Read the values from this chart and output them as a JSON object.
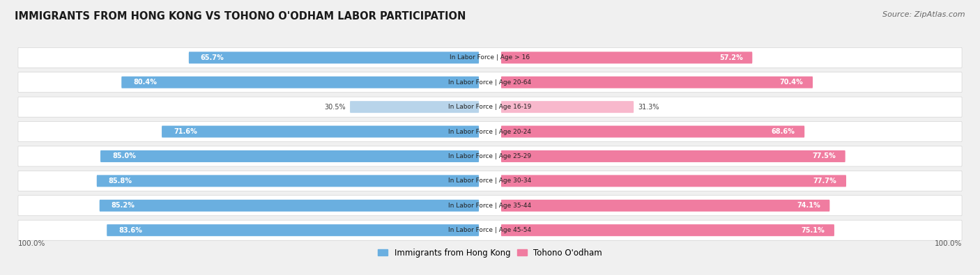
{
  "title": "IMMIGRANTS FROM HONG KONG VS TOHONO O'ODHAM LABOR PARTICIPATION",
  "source": "Source: ZipAtlas.com",
  "categories": [
    "In Labor Force | Age > 16",
    "In Labor Force | Age 20-64",
    "In Labor Force | Age 16-19",
    "In Labor Force | Age 20-24",
    "In Labor Force | Age 25-29",
    "In Labor Force | Age 30-34",
    "In Labor Force | Age 35-44",
    "In Labor Force | Age 45-54"
  ],
  "hk_values": [
    65.7,
    80.4,
    30.5,
    71.6,
    85.0,
    85.8,
    85.2,
    83.6
  ],
  "tohono_values": [
    57.2,
    70.4,
    31.3,
    68.6,
    77.5,
    77.7,
    74.1,
    75.1
  ],
  "hk_color": "#6aafe0",
  "tohono_color": "#f07ca0",
  "hk_color_light": "#b8d4ea",
  "tohono_color_light": "#f8b8cc",
  "bg_color": "#f0f0f0",
  "legend_hk": "Immigrants from Hong Kong",
  "legend_tohono": "Tohono O'odham",
  "max_val": 100.0,
  "threshold": 50
}
